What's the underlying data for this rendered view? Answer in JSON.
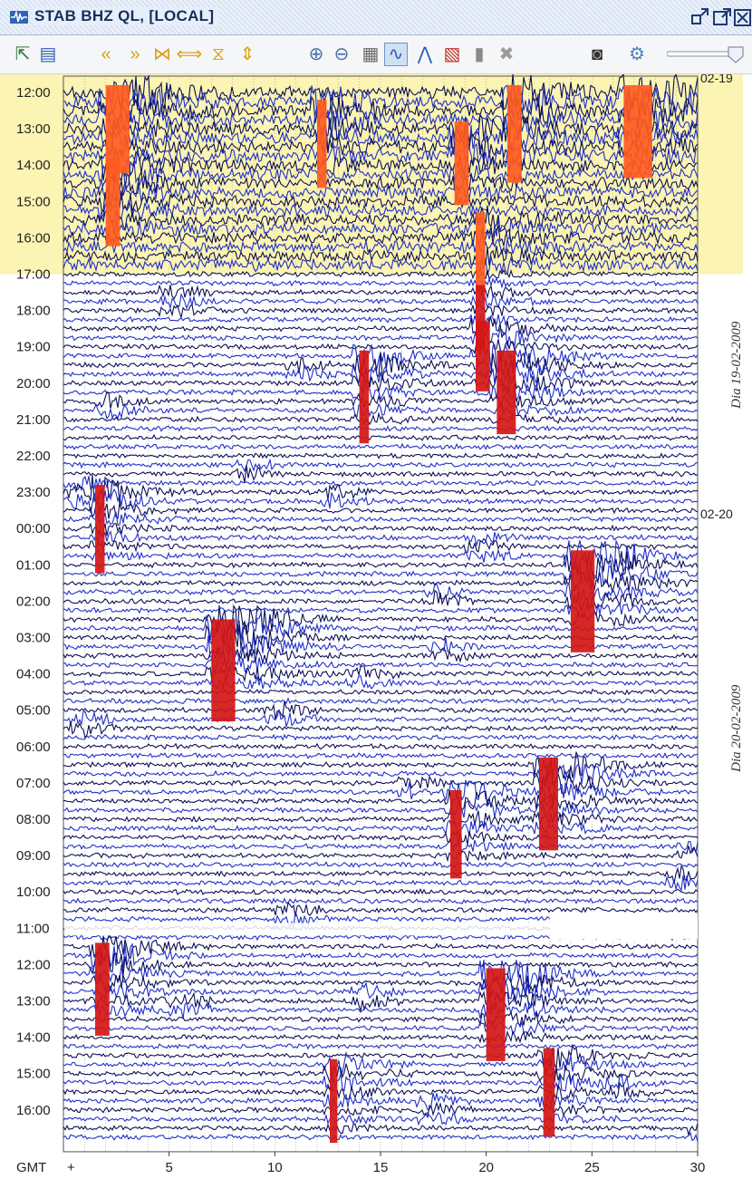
{
  "window": {
    "title": "STAB BHZ QL, [LOCAL]"
  },
  "toolbar": {
    "tools": [
      {
        "icon": "export-icon",
        "glyph": "⇱"
      },
      {
        "icon": "layout-icon",
        "glyph": "▤"
      },
      {
        "icon": "rewind-icon",
        "glyph": "«"
      },
      {
        "icon": "forward-icon",
        "glyph": "»"
      },
      {
        "icon": "compress-horizontal-icon",
        "glyph": "⋈"
      },
      {
        "icon": "expand-horizontal-icon",
        "glyph": "⟺"
      },
      {
        "icon": "compress-vertical-icon",
        "glyph": "⧖"
      },
      {
        "icon": "expand-vertical-icon",
        "glyph": "⇕"
      },
      {
        "icon": "zoom-in-icon",
        "glyph": "⊕"
      },
      {
        "icon": "zoom-out-icon",
        "glyph": "⊖"
      },
      {
        "icon": "fit-icon",
        "glyph": "▦"
      },
      {
        "icon": "waveform-icon",
        "glyph": "∿"
      },
      {
        "icon": "spectrum-icon",
        "glyph": "⋀"
      },
      {
        "icon": "spectrogram-icon",
        "glyph": "▧"
      },
      {
        "icon": "clipboard-icon",
        "glyph": "▮"
      },
      {
        "icon": "delete-icon",
        "glyph": "✖"
      },
      {
        "icon": "camera-icon",
        "glyph": "◙"
      },
      {
        "icon": "settings-icon",
        "glyph": "⚙"
      }
    ],
    "pressed_tool": "waveform-icon",
    "slider_level": 1.0
  },
  "helicorder": {
    "hour_labels": [
      "12:00",
      "13:00",
      "14:00",
      "15:00",
      "16:00",
      "17:00",
      "18:00",
      "19:00",
      "20:00",
      "21:00",
      "22:00",
      "23:00",
      "00:00",
      "01:00",
      "02:00",
      "03:00",
      "04:00",
      "05:00",
      "06:00",
      "07:00",
      "08:00",
      "09:00",
      "10:00",
      "11:00",
      "12:00",
      "13:00",
      "14:00",
      "15:00",
      "16:00"
    ],
    "date_markers": [
      {
        "label": "02-19",
        "hour_index": 0
      },
      {
        "label": "02-20",
        "hour_index": 12
      }
    ],
    "day_labels": [
      {
        "text": "Dia 19-02-2009",
        "hour_index": 7.5
      },
      {
        "text": "Dia 20-02-2009",
        "hour_index": 17.5
      }
    ],
    "x_axis": {
      "timezone": "GMT",
      "origin_mark": "+",
      "ticks": [
        "5",
        "10",
        "15",
        "20",
        "25",
        "30"
      ],
      "tick_values": [
        5,
        10,
        15,
        20,
        25,
        30
      ],
      "range": [
        0,
        30
      ],
      "unit_minutes": true
    },
    "highlight_range_hours": [
      0,
      5
    ],
    "colors": {
      "trace_dark": "#0b0f55",
      "trace_blue": "#1f2fc9",
      "event_red": "#d41616",
      "event_orange": "#ff5a1f",
      "highlight": "#fbf4b2",
      "grid": "#9a9a9a"
    },
    "traces_per_hour": 4,
    "events": [
      {
        "hour": 0.0,
        "minute": 2.0,
        "dur": 2.5,
        "amp": 1.0
      },
      {
        "hour": 0.4,
        "minute": 12.0,
        "dur": 1.0,
        "amp": 1.0
      },
      {
        "hour": 0.0,
        "minute": 21.0,
        "dur": 1.5,
        "amp": 1.2
      },
      {
        "hour": 0.0,
        "minute": 26.5,
        "dur": 3.0,
        "amp": 1.1
      },
      {
        "hour": 1.0,
        "minute": 18.5,
        "dur": 1.5,
        "amp": 0.9
      },
      {
        "hour": 2.0,
        "minute": 2.0,
        "dur": 1.5,
        "amp": 1.0
      },
      {
        "hour": 3.5,
        "minute": 19.5,
        "dur": 1.0,
        "amp": 0.8
      },
      {
        "hour": 5.5,
        "minute": 19.5,
        "dur": 1.0,
        "amp": 0.5
      },
      {
        "hour": 6.5,
        "minute": 19.5,
        "dur": 1.5,
        "amp": 0.6
      },
      {
        "hour": 7.3,
        "minute": 20.5,
        "dur": 2.0,
        "amp": 0.9
      },
      {
        "hour": 7.3,
        "minute": 14.0,
        "dur": 1.0,
        "amp": 1.1
      },
      {
        "hour": 11.0,
        "minute": 1.5,
        "dur": 1.0,
        "amp": 1.0
      },
      {
        "hour": 12.8,
        "minute": 24.0,
        "dur": 2.5,
        "amp": 1.3
      },
      {
        "hour": 14.7,
        "minute": 7.0,
        "dur": 2.5,
        "amp": 1.3
      },
      {
        "hour": 18.5,
        "minute": 22.5,
        "dur": 2.0,
        "amp": 1.1
      },
      {
        "hour": 19.4,
        "minute": 18.3,
        "dur": 1.2,
        "amp": 1.0
      },
      {
        "hour": 23.6,
        "minute": 1.5,
        "dur": 1.5,
        "amp": 1.1
      },
      {
        "hour": 24.3,
        "minute": 20.0,
        "dur": 2.0,
        "amp": 1.1
      },
      {
        "hour": 26.5,
        "minute": 22.7,
        "dur": 1.2,
        "amp": 1.0
      },
      {
        "hour": 26.8,
        "minute": 12.6,
        "dur": 0.8,
        "amp": 0.9
      }
    ],
    "blue_bursts": [
      {
        "hour": 5.7,
        "minute": 5.0
      },
      {
        "hour": 7.6,
        "minute": 11.0
      },
      {
        "hour": 8.6,
        "minute": 2.0
      },
      {
        "hour": 10.4,
        "minute": 8.5
      },
      {
        "hour": 11.2,
        "minute": 12.5
      },
      {
        "hour": 11.0,
        "minute": 0.5
      },
      {
        "hour": 12.5,
        "minute": 19.5
      },
      {
        "hour": 13.9,
        "minute": 17.5
      },
      {
        "hour": 15.3,
        "minute": 17.8
      },
      {
        "hour": 16.2,
        "minute": 13.8
      },
      {
        "hour": 17.3,
        "minute": 0.8
      },
      {
        "hour": 17.2,
        "minute": 10.0
      },
      {
        "hour": 19.1,
        "minute": 16.3
      },
      {
        "hour": 20.8,
        "minute": 29.5
      },
      {
        "hour": 21.6,
        "minute": 28.8
      },
      {
        "hour": 22.6,
        "minute": 10.5
      },
      {
        "hour": 24.9,
        "minute": 14.0
      },
      {
        "hour": 25.2,
        "minute": 5.5
      },
      {
        "hour": 27.4,
        "minute": 26.0
      },
      {
        "hour": 28.0,
        "minute": 17.2
      },
      {
        "hour": 28.7,
        "minute": 30.0
      }
    ],
    "gap": {
      "hour": 22.75,
      "minute_start": 23.0,
      "minute_end": 30.0,
      "hour_end": 23.25
    }
  }
}
